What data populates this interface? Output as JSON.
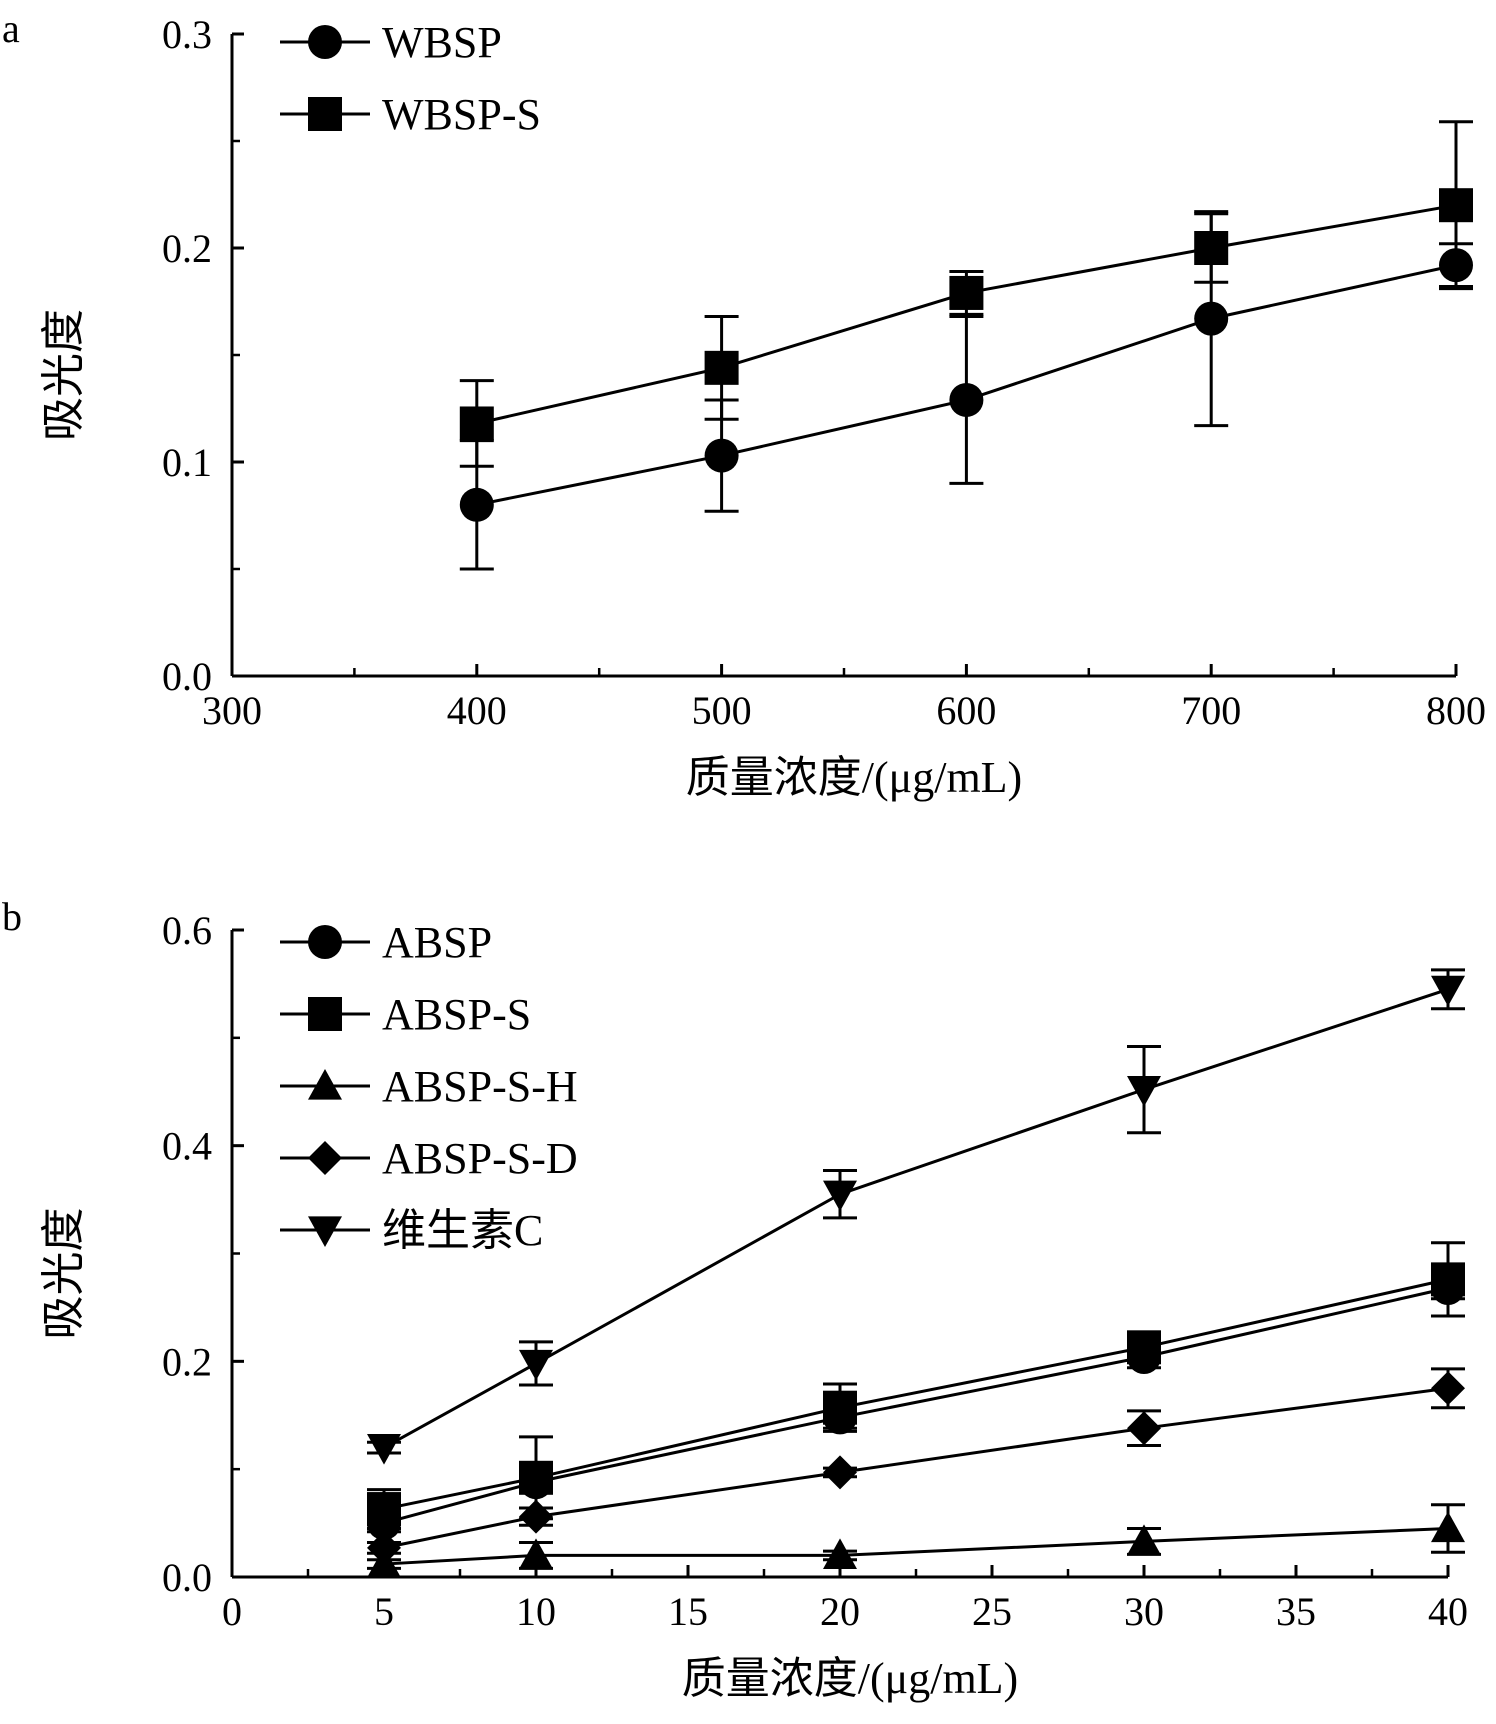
{
  "chart_data": [
    {
      "panel_label": "a",
      "type": "line",
      "xlabel": "质量浓度/(μg/mL)",
      "ylabel": "吸光度",
      "xlim": [
        300,
        800
      ],
      "ylim": [
        0.0,
        0.3
      ],
      "xticks": [
        "300",
        "400",
        "500",
        "600",
        "700",
        "800"
      ],
      "yticks": [
        "0.0",
        "0.1",
        "0.2",
        "0.3"
      ],
      "grid": false,
      "legend_position": "top-left",
      "x": [
        400,
        500,
        600,
        700,
        800
      ],
      "series": [
        {
          "name": "WBSP",
          "marker": "circle",
          "values": [
            0.08,
            0.103,
            0.129,
            0.167,
            0.192
          ],
          "errors": [
            0.03,
            0.026,
            0.039,
            0.05,
            0.01
          ]
        },
        {
          "name": "WBSP-S",
          "marker": "square",
          "values": [
            0.118,
            0.144,
            0.179,
            0.2,
            0.22
          ],
          "errors": [
            0.02,
            0.024,
            0.01,
            0.016,
            0.039
          ]
        }
      ]
    },
    {
      "panel_label": "b",
      "type": "line",
      "xlabel": "质量浓度/(μg/mL)",
      "ylabel": "吸光度",
      "xlim": [
        0,
        40
      ],
      "ylim": [
        0.0,
        0.6
      ],
      "xticks": [
        "0",
        "5",
        "10",
        "15",
        "20",
        "25",
        "30",
        "35",
        "40"
      ],
      "yticks": [
        "0.0",
        "0.2",
        "0.4",
        "0.6"
      ],
      "grid": false,
      "legend_position": "top-left",
      "x": [
        5,
        10,
        20,
        30,
        40
      ],
      "series": [
        {
          "name": "ABSP",
          "marker": "circle",
          "values": [
            0.05,
            0.088,
            0.148,
            0.204,
            0.268
          ],
          "errors": [
            0.008,
            0.008,
            0.01,
            0.01,
            0.01
          ]
        },
        {
          "name": "ABSP-S",
          "marker": "square",
          "values": [
            0.063,
            0.092,
            0.157,
            0.213,
            0.276
          ],
          "errors": [
            0.018,
            0.038,
            0.022,
            0.012,
            0.034
          ]
        },
        {
          "name": "ABSP-S-H",
          "marker": "triangle-up",
          "values": [
            0.012,
            0.02,
            0.02,
            0.033,
            0.045
          ],
          "errors": [
            0.004,
            0.012,
            0.004,
            0.012,
            0.022
          ]
        },
        {
          "name": "ABSP-S-D",
          "marker": "diamond",
          "values": [
            0.027,
            0.056,
            0.097,
            0.138,
            0.175
          ],
          "errors": [
            0.005,
            0.008,
            0.004,
            0.016,
            0.018
          ]
        },
        {
          "name": "维生素C",
          "marker": "triangle-down",
          "values": [
            0.12,
            0.198,
            0.355,
            0.452,
            0.545
          ],
          "errors": [
            0.005,
            0.02,
            0.022,
            0.04,
            0.018
          ]
        }
      ]
    }
  ]
}
